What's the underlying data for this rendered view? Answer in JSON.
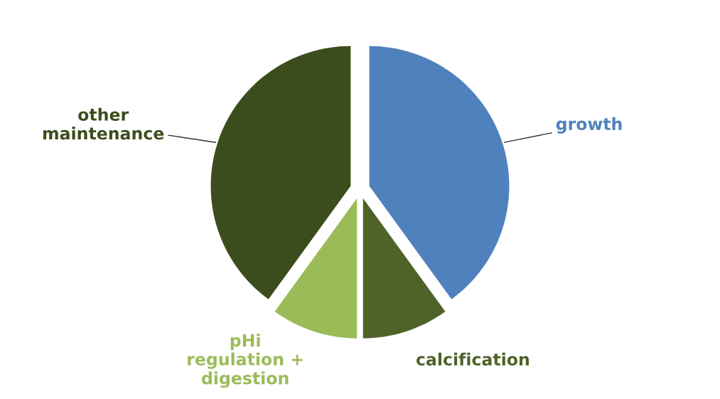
{
  "chart_data": {
    "type": "pie",
    "categories": [
      "growth",
      "calcification",
      "pHi\nregulation +\ndigestion",
      "other\nmaintenance"
    ],
    "values": [
      40,
      10,
      10,
      40
    ],
    "colors": [
      "#4f81bd",
      "#4f6228",
      "#9bbb59",
      "#3b4d1c"
    ]
  }
}
